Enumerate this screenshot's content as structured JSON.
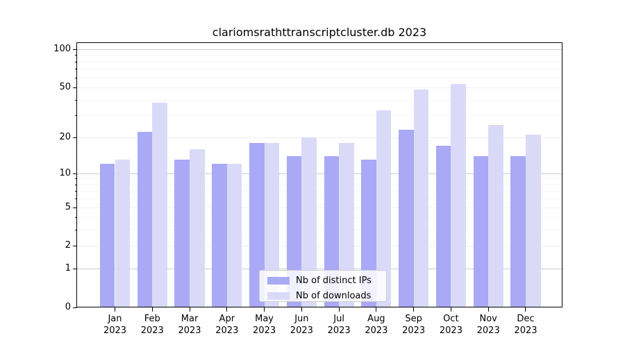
{
  "title": "clariomsrathttranscriptcluster.db 2023",
  "chart_data": {
    "type": "bar",
    "scale": "log1p",
    "title": "clariomsrathttranscriptcluster.db 2023",
    "categories": [
      "Jan",
      "Feb",
      "Mar",
      "Apr",
      "May",
      "Jun",
      "Jul",
      "Aug",
      "Sep",
      "Oct",
      "Nov",
      "Dec"
    ],
    "year_label": "2023",
    "series": [
      {
        "name": "Nb of distinct IPs",
        "color": "#a9a9f6",
        "values": [
          12,
          22,
          13,
          12,
          18,
          14,
          14,
          13,
          23,
          17,
          14,
          14
        ]
      },
      {
        "name": "Nb of downloads",
        "color": "#dadaf8",
        "values": [
          13,
          38,
          16,
          12,
          18,
          20,
          18,
          33,
          48,
          53,
          25,
          21
        ]
      }
    ],
    "yticks": [
      100,
      50,
      20,
      10,
      5,
      2,
      1,
      0
    ],
    "minor_gridlines": [
      3,
      4,
      6,
      7,
      8,
      9,
      30,
      40,
      60,
      70,
      80,
      90
    ],
    "ylim": [
      0,
      112
    ],
    "xlabel": "",
    "ylabel": "",
    "grid": true,
    "legend_position": "lower center inside",
    "colors": {
      "axis": "#000000",
      "grid_decade": "#cccccc",
      "grid_major": "#ededed",
      "grid_minor": "#f6f6f6",
      "legend_border": "#cccccc",
      "background": "#ffffff"
    }
  }
}
